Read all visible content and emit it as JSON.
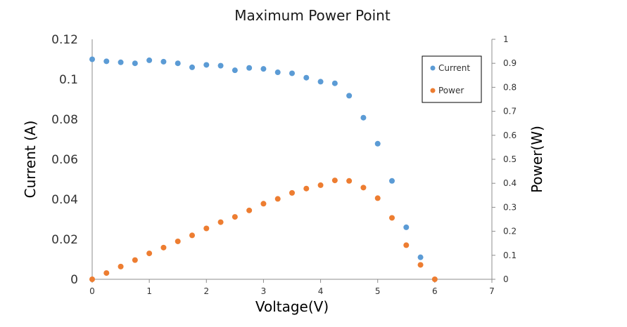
{
  "chart_data": {
    "type": "scatter",
    "title": "Maximum Power Point",
    "xlabel": "Voltage(V)",
    "ylabel": "Current (A)",
    "y2label": "Power(W)",
    "xlim": [
      0,
      7
    ],
    "ylim": [
      0,
      0.12
    ],
    "y2lim": [
      0,
      1
    ],
    "x_ticks": [
      "0",
      "1",
      "2",
      "3",
      "4",
      "5",
      "6",
      "7"
    ],
    "y_ticks": [
      "0",
      "0.02",
      "0.04",
      "0.06",
      "0.08",
      "0.1",
      "0.12"
    ],
    "y2_ticks": [
      "0",
      "0.1",
      "0.2",
      "0.3",
      "0.4",
      "0.5",
      "0.6",
      "0.7",
      "0.8",
      "0.9",
      "1"
    ],
    "legend_position": "top-right",
    "grid": false,
    "series": [
      {
        "name": "Current",
        "axis": "left",
        "color": "#5b9bd5",
        "x": [
          0,
          0.25,
          0.5,
          0.75,
          1.0,
          1.25,
          1.5,
          1.75,
          2.0,
          2.25,
          2.5,
          2.75,
          3.0,
          3.25,
          3.5,
          3.75,
          4.0,
          4.25,
          4.5,
          4.75,
          5.0,
          5.25,
          5.5,
          5.75
        ],
        "y": [
          0.11,
          0.109,
          0.1085,
          0.108,
          0.1095,
          0.1088,
          0.108,
          0.106,
          0.1072,
          0.1068,
          0.1045,
          0.1057,
          0.1052,
          0.1035,
          0.103,
          0.1008,
          0.0988,
          0.098,
          0.0918,
          0.0808,
          0.0678,
          0.0492,
          0.026,
          0.011
        ]
      },
      {
        "name": "Power",
        "axis": "right",
        "color": "#ed7d31",
        "x": [
          0,
          0.25,
          0.5,
          0.75,
          1.0,
          1.25,
          1.5,
          1.75,
          2.0,
          2.25,
          2.5,
          2.75,
          3.0,
          3.25,
          3.5,
          3.75,
          4.0,
          4.25,
          4.5,
          4.75,
          5.0,
          5.25,
          5.5,
          5.75,
          6.0
        ],
        "y": [
          0,
          0.026,
          0.053,
          0.08,
          0.108,
          0.132,
          0.158,
          0.183,
          0.212,
          0.238,
          0.26,
          0.287,
          0.315,
          0.335,
          0.36,
          0.378,
          0.392,
          0.412,
          0.41,
          0.382,
          0.338,
          0.256,
          0.142,
          0.06,
          0
        ]
      }
    ]
  }
}
